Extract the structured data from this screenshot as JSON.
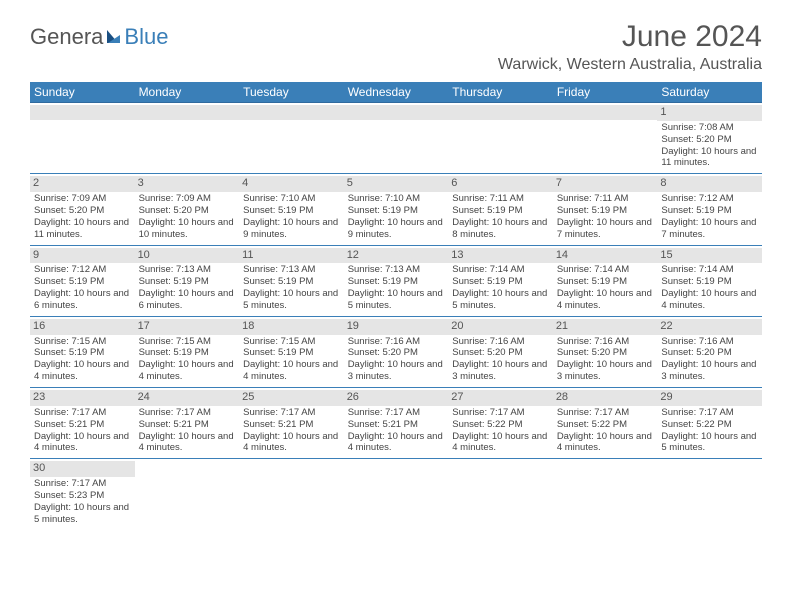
{
  "logo": {
    "text1": "Genera",
    "text2": "Blue"
  },
  "title": "June 2024",
  "location": "Warwick, Western Australia, Australia",
  "header_bg": "#3a7fb8",
  "days_of_week": [
    "Sunday",
    "Monday",
    "Tuesday",
    "Wednesday",
    "Thursday",
    "Friday",
    "Saturday"
  ],
  "weeks": [
    [
      {
        "n": "",
        "sr": "",
        "ss": "",
        "dl": ""
      },
      {
        "n": "",
        "sr": "",
        "ss": "",
        "dl": ""
      },
      {
        "n": "",
        "sr": "",
        "ss": "",
        "dl": ""
      },
      {
        "n": "",
        "sr": "",
        "ss": "",
        "dl": ""
      },
      {
        "n": "",
        "sr": "",
        "ss": "",
        "dl": ""
      },
      {
        "n": "",
        "sr": "",
        "ss": "",
        "dl": ""
      },
      {
        "n": "1",
        "sr": "Sunrise: 7:08 AM",
        "ss": "Sunset: 5:20 PM",
        "dl": "Daylight: 10 hours and 11 minutes."
      }
    ],
    [
      {
        "n": "2",
        "sr": "Sunrise: 7:09 AM",
        "ss": "Sunset: 5:20 PM",
        "dl": "Daylight: 10 hours and 11 minutes."
      },
      {
        "n": "3",
        "sr": "Sunrise: 7:09 AM",
        "ss": "Sunset: 5:20 PM",
        "dl": "Daylight: 10 hours and 10 minutes."
      },
      {
        "n": "4",
        "sr": "Sunrise: 7:10 AM",
        "ss": "Sunset: 5:19 PM",
        "dl": "Daylight: 10 hours and 9 minutes."
      },
      {
        "n": "5",
        "sr": "Sunrise: 7:10 AM",
        "ss": "Sunset: 5:19 PM",
        "dl": "Daylight: 10 hours and 9 minutes."
      },
      {
        "n": "6",
        "sr": "Sunrise: 7:11 AM",
        "ss": "Sunset: 5:19 PM",
        "dl": "Daylight: 10 hours and 8 minutes."
      },
      {
        "n": "7",
        "sr": "Sunrise: 7:11 AM",
        "ss": "Sunset: 5:19 PM",
        "dl": "Daylight: 10 hours and 7 minutes."
      },
      {
        "n": "8",
        "sr": "Sunrise: 7:12 AM",
        "ss": "Sunset: 5:19 PM",
        "dl": "Daylight: 10 hours and 7 minutes."
      }
    ],
    [
      {
        "n": "9",
        "sr": "Sunrise: 7:12 AM",
        "ss": "Sunset: 5:19 PM",
        "dl": "Daylight: 10 hours and 6 minutes."
      },
      {
        "n": "10",
        "sr": "Sunrise: 7:13 AM",
        "ss": "Sunset: 5:19 PM",
        "dl": "Daylight: 10 hours and 6 minutes."
      },
      {
        "n": "11",
        "sr": "Sunrise: 7:13 AM",
        "ss": "Sunset: 5:19 PM",
        "dl": "Daylight: 10 hours and 5 minutes."
      },
      {
        "n": "12",
        "sr": "Sunrise: 7:13 AM",
        "ss": "Sunset: 5:19 PM",
        "dl": "Daylight: 10 hours and 5 minutes."
      },
      {
        "n": "13",
        "sr": "Sunrise: 7:14 AM",
        "ss": "Sunset: 5:19 PM",
        "dl": "Daylight: 10 hours and 5 minutes."
      },
      {
        "n": "14",
        "sr": "Sunrise: 7:14 AM",
        "ss": "Sunset: 5:19 PM",
        "dl": "Daylight: 10 hours and 4 minutes."
      },
      {
        "n": "15",
        "sr": "Sunrise: 7:14 AM",
        "ss": "Sunset: 5:19 PM",
        "dl": "Daylight: 10 hours and 4 minutes."
      }
    ],
    [
      {
        "n": "16",
        "sr": "Sunrise: 7:15 AM",
        "ss": "Sunset: 5:19 PM",
        "dl": "Daylight: 10 hours and 4 minutes."
      },
      {
        "n": "17",
        "sr": "Sunrise: 7:15 AM",
        "ss": "Sunset: 5:19 PM",
        "dl": "Daylight: 10 hours and 4 minutes."
      },
      {
        "n": "18",
        "sr": "Sunrise: 7:15 AM",
        "ss": "Sunset: 5:19 PM",
        "dl": "Daylight: 10 hours and 4 minutes."
      },
      {
        "n": "19",
        "sr": "Sunrise: 7:16 AM",
        "ss": "Sunset: 5:20 PM",
        "dl": "Daylight: 10 hours and 3 minutes."
      },
      {
        "n": "20",
        "sr": "Sunrise: 7:16 AM",
        "ss": "Sunset: 5:20 PM",
        "dl": "Daylight: 10 hours and 3 minutes."
      },
      {
        "n": "21",
        "sr": "Sunrise: 7:16 AM",
        "ss": "Sunset: 5:20 PM",
        "dl": "Daylight: 10 hours and 3 minutes."
      },
      {
        "n": "22",
        "sr": "Sunrise: 7:16 AM",
        "ss": "Sunset: 5:20 PM",
        "dl": "Daylight: 10 hours and 3 minutes."
      }
    ],
    [
      {
        "n": "23",
        "sr": "Sunrise: 7:17 AM",
        "ss": "Sunset: 5:21 PM",
        "dl": "Daylight: 10 hours and 4 minutes."
      },
      {
        "n": "24",
        "sr": "Sunrise: 7:17 AM",
        "ss": "Sunset: 5:21 PM",
        "dl": "Daylight: 10 hours and 4 minutes."
      },
      {
        "n": "25",
        "sr": "Sunrise: 7:17 AM",
        "ss": "Sunset: 5:21 PM",
        "dl": "Daylight: 10 hours and 4 minutes."
      },
      {
        "n": "26",
        "sr": "Sunrise: 7:17 AM",
        "ss": "Sunset: 5:21 PM",
        "dl": "Daylight: 10 hours and 4 minutes."
      },
      {
        "n": "27",
        "sr": "Sunrise: 7:17 AM",
        "ss": "Sunset: 5:22 PM",
        "dl": "Daylight: 10 hours and 4 minutes."
      },
      {
        "n": "28",
        "sr": "Sunrise: 7:17 AM",
        "ss": "Sunset: 5:22 PM",
        "dl": "Daylight: 10 hours and 4 minutes."
      },
      {
        "n": "29",
        "sr": "Sunrise: 7:17 AM",
        "ss": "Sunset: 5:22 PM",
        "dl": "Daylight: 10 hours and 5 minutes."
      }
    ],
    [
      {
        "n": "30",
        "sr": "Sunrise: 7:17 AM",
        "ss": "Sunset: 5:23 PM",
        "dl": "Daylight: 10 hours and 5 minutes."
      },
      {
        "n": "",
        "sr": "",
        "ss": "",
        "dl": ""
      },
      {
        "n": "",
        "sr": "",
        "ss": "",
        "dl": ""
      },
      {
        "n": "",
        "sr": "",
        "ss": "",
        "dl": ""
      },
      {
        "n": "",
        "sr": "",
        "ss": "",
        "dl": ""
      },
      {
        "n": "",
        "sr": "",
        "ss": "",
        "dl": ""
      },
      {
        "n": "",
        "sr": "",
        "ss": "",
        "dl": ""
      }
    ]
  ]
}
